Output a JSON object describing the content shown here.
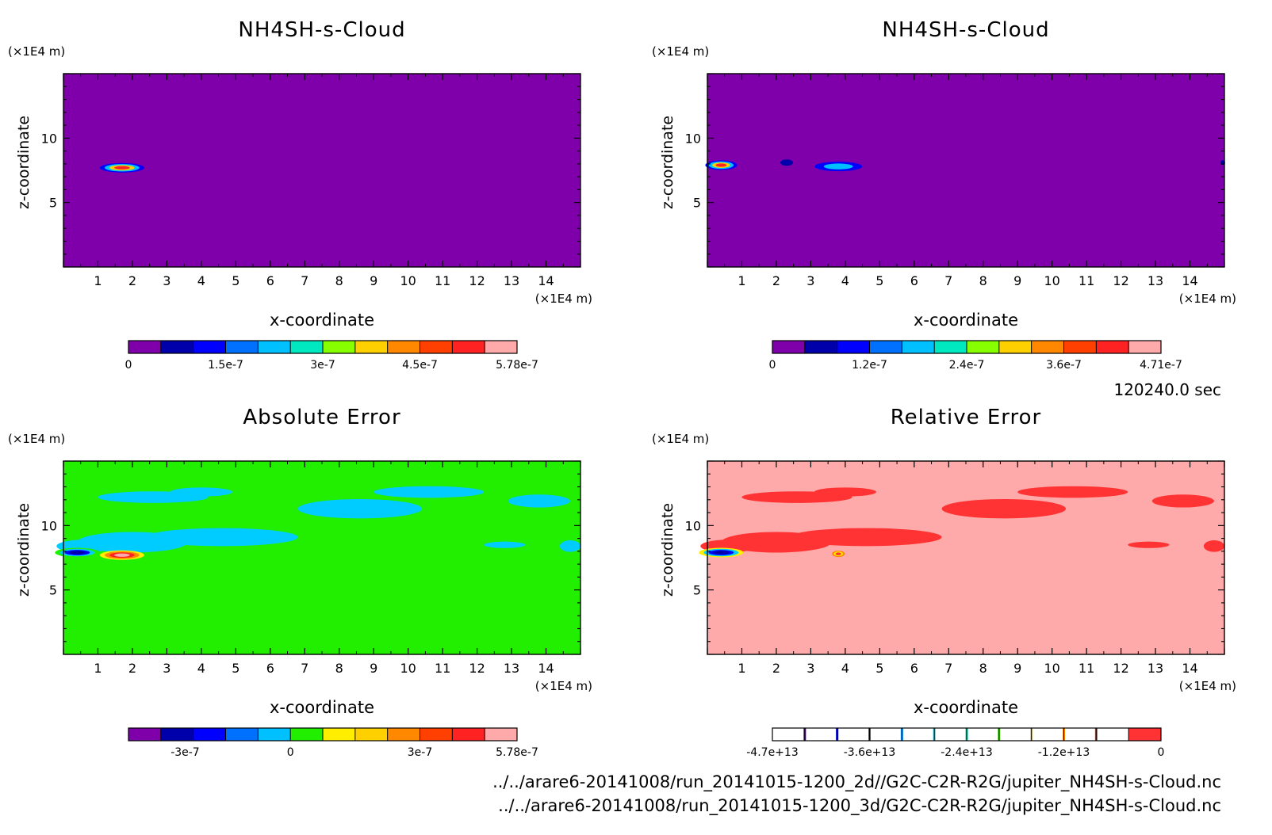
{
  "time_label": "120240.0 sec",
  "file_paths": [
    "../../arare6-20141008/run_20141015-1200_2d//G2C-C2R-R2G/jupiter_NH4SH-s-Cloud.nc",
    "../../arare6-20141008/run_20141015-1200_3d/G2C-C2R-R2G/jupiter_NH4SH-s-Cloud.nc"
  ],
  "chart_data": [
    {
      "type": "heatmap",
      "title": "NH4SH-s-Cloud",
      "xlabel": "x-coordinate",
      "ylabel": "z-coordinate",
      "x_unit": "(×1E4 m)",
      "y_unit": "(×1E4 m)",
      "xlim": [
        0,
        15
      ],
      "ylim": [
        0,
        15
      ],
      "x_ticks": [
        "1",
        "2",
        "3",
        "4",
        "5",
        "6",
        "7",
        "8",
        "9",
        "10",
        "11",
        "12",
        "13",
        "14"
      ],
      "y_ticks": [
        "5",
        "10"
      ],
      "background": "#7f00aa",
      "colorbar": {
        "colors": [
          "#7f00aa",
          "#0000aa",
          "#0000ff",
          "#0070ff",
          "#00c0ff",
          "#00e8c0",
          "#88ff00",
          "#ffd000",
          "#ff8800",
          "#ff4000",
          "#ff2222",
          "#ffaaaa"
        ],
        "labels": [
          "0",
          "1.5e-7",
          "3e-7",
          "4.5e-7",
          "5.78e-7"
        ]
      },
      "features": [
        {
          "x": 1.7,
          "z": 7.7,
          "level": "peak"
        }
      ]
    },
    {
      "type": "heatmap",
      "title": "NH4SH-s-Cloud",
      "xlabel": "x-coordinate",
      "ylabel": "z-coordinate",
      "x_unit": "(×1E4 m)",
      "y_unit": "(×1E4 m)",
      "xlim": [
        0,
        15
      ],
      "ylim": [
        0,
        15
      ],
      "x_ticks": [
        "1",
        "2",
        "3",
        "4",
        "5",
        "6",
        "7",
        "8",
        "9",
        "10",
        "11",
        "12",
        "13",
        "14"
      ],
      "y_ticks": [
        "5",
        "10"
      ],
      "background": "#7f00aa",
      "colorbar": {
        "colors": [
          "#7f00aa",
          "#0000aa",
          "#0000ff",
          "#0070ff",
          "#00c0ff",
          "#00e8c0",
          "#88ff00",
          "#ffd000",
          "#ff8800",
          "#ff4000",
          "#ff2222",
          "#ffaaaa"
        ],
        "labels": [
          "0",
          "1.2e-7",
          "2.4e-7",
          "3.6e-7",
          "4.71e-7"
        ]
      },
      "features": [
        {
          "x": 0.4,
          "z": 7.9,
          "level": "peak"
        },
        {
          "x": 2.3,
          "z": 8.1,
          "level": "low"
        },
        {
          "x": 3.8,
          "z": 7.8,
          "level": "mid"
        }
      ]
    },
    {
      "type": "heatmap",
      "title": "Absolute Error",
      "xlabel": "x-coordinate",
      "ylabel": "z-coordinate",
      "x_unit": "(×1E4 m)",
      "y_unit": "(×1E4 m)",
      "xlim": [
        0,
        15
      ],
      "ylim": [
        0,
        15
      ],
      "x_ticks": [
        "1",
        "2",
        "3",
        "4",
        "5",
        "6",
        "7",
        "8",
        "9",
        "10",
        "11",
        "12",
        "13",
        "14"
      ],
      "y_ticks": [
        "5",
        "10"
      ],
      "background": "#22ee00",
      "colorbar": {
        "colors": [
          "#7f00aa",
          "#0000aa",
          "#0000ff",
          "#0070ff",
          "#00c0ff",
          "#22ee00",
          "#ffee00",
          "#ffd000",
          "#ff8800",
          "#ff4000",
          "#ff2222",
          "#ffaaaa"
        ],
        "labels": [
          "-3e-7",
          "0",
          "3e-7",
          "5.78e-7"
        ]
      },
      "features": [
        {
          "x": 0.4,
          "z": 7.9,
          "level": "min"
        },
        {
          "x": 1.7,
          "z": 7.7,
          "level": "max"
        }
      ]
    },
    {
      "type": "heatmap",
      "title": "Relative Error",
      "xlabel": "x-coordinate",
      "ylabel": "z-coordinate",
      "x_unit": "(×1E4 m)",
      "y_unit": "(×1E4 m)",
      "xlim": [
        0,
        15
      ],
      "ylim": [
        0,
        15
      ],
      "x_ticks": [
        "1",
        "2",
        "3",
        "4",
        "5",
        "6",
        "7",
        "8",
        "9",
        "10",
        "11",
        "12",
        "13",
        "14"
      ],
      "y_ticks": [
        "5",
        "10"
      ],
      "background": "#ffaaaa",
      "colorbar": {
        "colors": [
          "#ffffff",
          "#ffffff",
          "#ffffff",
          "#ffffff",
          "#ffffff",
          "#ffffff",
          "#ffffff",
          "#ffffff",
          "#ffffff",
          "#ffffff",
          "#ffffff",
          "#ff3333"
        ],
        "line_colors": [
          "#5500aa",
          "#0000cc",
          "#0066ff",
          "#0099ff",
          "#00ddff",
          "#00ddaa",
          "#44dd00",
          "#ffcc00",
          "#ff8800",
          "#ff2200"
        ],
        "labels": [
          "-4.7e+13",
          "-3.6e+13",
          "-2.4e+13",
          "-1.2e+13",
          "0"
        ]
      },
      "features": [
        {
          "x": 0.4,
          "z": 7.9,
          "level": "min"
        },
        {
          "x": 3.8,
          "z": 7.8,
          "level": "low"
        }
      ]
    }
  ]
}
